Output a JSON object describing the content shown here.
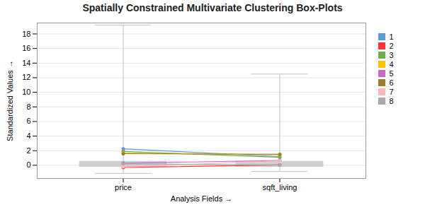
{
  "chart_data": {
    "type": "box",
    "title": "Spatially Constrained Multivariate Clustering Box-Plots",
    "xlabel": "Analysis Fields",
    "ylabel": "Standardized Values",
    "categories": [
      "price",
      "sqft_living"
    ],
    "ylim": [
      -1.8,
      19.5
    ],
    "yticks": [
      0,
      2,
      4,
      6,
      8,
      10,
      12,
      14,
      16,
      18
    ],
    "grid": true,
    "legend": "right",
    "marker": "circle",
    "boxes": {
      "color": "#c0c0c0",
      "whisker_bottom": [
        -1.1,
        -0.85
      ],
      "box_bottom": [
        -0.25,
        -0.25
      ],
      "box_top": [
        0.55,
        0.55
      ],
      "whisker_top": [
        19.2,
        12.5
      ]
    },
    "series": [
      {
        "name": "1",
        "type": "line",
        "color": "#5B9BD5",
        "values": [
          2.25,
          1.2
        ]
      },
      {
        "name": "2",
        "type": "line",
        "color": "#FF3333",
        "values": [
          -0.3,
          0.05
        ]
      },
      {
        "name": "3",
        "type": "line",
        "color": "#70AD47",
        "values": [
          1.9,
          1.1
        ]
      },
      {
        "name": "4",
        "type": "line",
        "color": "#FFC000",
        "values": [
          1.65,
          1.45
        ]
      },
      {
        "name": "5",
        "type": "line",
        "color": "#CC66CC",
        "values": [
          0.3,
          0.65
        ]
      },
      {
        "name": "6",
        "type": "line",
        "color": "#9E7C2E",
        "values": [
          1.6,
          1.5
        ]
      },
      {
        "name": "7",
        "type": "line",
        "color": "#FFB6C1",
        "values": [
          -0.2,
          0.6
        ]
      },
      {
        "name": "8",
        "type": "line",
        "color": "#aaaaaa",
        "values": [
          0.2,
          0.05
        ]
      }
    ]
  }
}
